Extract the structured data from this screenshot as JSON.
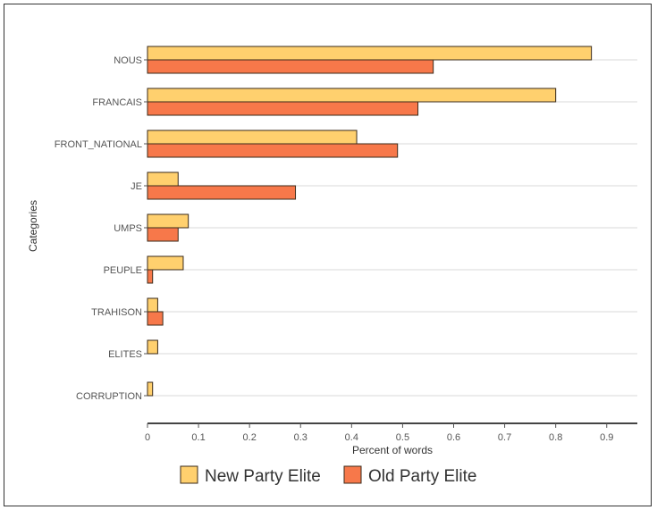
{
  "chart_data": {
    "type": "bar",
    "orientation": "horizontal",
    "categories": [
      "NOUS",
      "FRANCAIS",
      "FRONT_NATIONAL",
      "JE",
      "UMPS",
      "PEUPLE",
      "TRAHISON",
      "ELITES",
      "CORRUPTION"
    ],
    "series": [
      {
        "name": "New Party Elite",
        "color": "#ffd06e",
        "values": [
          0.87,
          0.8,
          0.41,
          0.06,
          0.08,
          0.07,
          0.02,
          0.02,
          0.01
        ]
      },
      {
        "name": "Old Party Elite",
        "color": "#f7784a",
        "values": [
          0.56,
          0.53,
          0.49,
          0.29,
          0.06,
          0.01,
          0.03,
          0.0,
          0.0
        ]
      }
    ],
    "xlabel": "Percent of words",
    "ylabel": "Categories",
    "xlim": [
      0,
      0.96
    ],
    "xticks": [
      "0",
      "0.1",
      "0.2",
      "0.3",
      "0.4",
      "0.5",
      "0.6",
      "0.7",
      "0.8",
      "0.9"
    ],
    "grid": "horizontal",
    "legend": "bottom"
  }
}
